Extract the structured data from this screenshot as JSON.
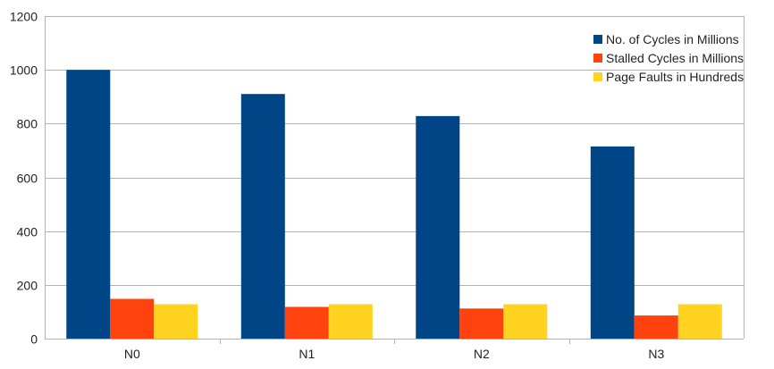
{
  "chart_data": {
    "type": "bar",
    "categories": [
      "N0",
      "N1",
      "N2",
      "N3"
    ],
    "series": [
      {
        "name": "No. of Cycles in Millions",
        "values": [
          1000,
          910,
          828,
          715
        ],
        "color": "#004586"
      },
      {
        "name": "Stalled Cycles in Millions",
        "values": [
          148,
          118,
          112,
          86
        ],
        "color": "#ff420e"
      },
      {
        "name": "Page Faults in Hundreds",
        "values": [
          128,
          128,
          128,
          128
        ],
        "color": "#ffd320"
      }
    ],
    "ylim": [
      0,
      1200
    ],
    "yticks": [
      0,
      200,
      400,
      600,
      800,
      1000,
      1200
    ],
    "title": "",
    "xlabel": "",
    "ylabel": "",
    "grid": true,
    "legend_position": "top-right"
  }
}
